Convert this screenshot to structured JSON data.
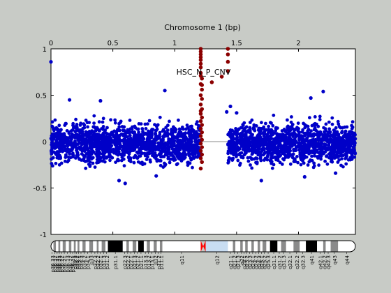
{
  "chart_data": {
    "type": "scatter",
    "title": "Chromosome 1 (bp)",
    "annotation": "HSC_N_P_CNV",
    "x_tick_labels": [
      "0",
      "0.5",
      "1",
      "1.5",
      "2"
    ],
    "x_ticks": [
      0,
      0.5,
      1,
      1.5,
      2
    ],
    "xlim": [
      0,
      2.46
    ],
    "y_tick_labels": [
      "1",
      "0.5",
      "0",
      "-0.5",
      "-1"
    ],
    "y_ticks": [
      1,
      0.5,
      0,
      -0.5,
      -1
    ],
    "ylim": [
      -1,
      1
    ],
    "grid": false,
    "baseline": 0,
    "series": [
      {
        "color": "#0000c8",
        "marker": "star",
        "segments": [
          {
            "x_start": 0.0,
            "x_end": 1.21,
            "y_center": -0.02,
            "y_spread": 0.26,
            "approx_points": 1500
          },
          {
            "x_start": 1.43,
            "x_end": 2.46,
            "y_center": -0.02,
            "y_spread": 0.26,
            "approx_points": 1300
          }
        ],
        "outliers": [
          [
            0.0,
            0.86
          ],
          [
            0.92,
            0.55
          ],
          [
            1.42,
            0.32
          ],
          [
            1.45,
            0.38
          ],
          [
            1.5,
            0.31
          ],
          [
            2.1,
            0.47
          ],
          [
            2.2,
            0.54
          ],
          [
            0.15,
            0.45
          ],
          [
            0.55,
            -0.42
          ],
          [
            0.6,
            -0.45
          ],
          [
            1.7,
            -0.42
          ],
          [
            2.05,
            -0.38
          ],
          [
            0.85,
            -0.37
          ],
          [
            2.3,
            -0.34
          ],
          [
            0.4,
            0.44
          ]
        ]
      },
      {
        "color": "#8b0000",
        "marker": "star",
        "points": [
          [
            1.21,
            1.0
          ],
          [
            1.21,
            0.97
          ],
          [
            1.21,
            0.94
          ],
          [
            1.21,
            0.91
          ],
          [
            1.21,
            0.88
          ],
          [
            1.21,
            0.84
          ],
          [
            1.21,
            0.8
          ],
          [
            1.21,
            0.74
          ],
          [
            1.22,
            0.68
          ],
          [
            1.21,
            0.62
          ],
          [
            1.22,
            0.56
          ],
          [
            1.21,
            0.5
          ],
          [
            1.22,
            0.46
          ],
          [
            1.21,
            0.4
          ],
          [
            1.22,
            0.35
          ],
          [
            1.21,
            0.3
          ],
          [
            1.22,
            0.26
          ],
          [
            1.21,
            0.22
          ],
          [
            1.22,
            0.18
          ],
          [
            1.21,
            0.14
          ],
          [
            1.22,
            0.1
          ],
          [
            1.21,
            0.06
          ],
          [
            1.22,
            0.02
          ],
          [
            1.21,
            -0.02
          ],
          [
            1.22,
            -0.06
          ],
          [
            1.21,
            -0.1
          ],
          [
            1.22,
            -0.14
          ],
          [
            1.21,
            -0.18
          ],
          [
            1.22,
            -0.22
          ],
          [
            1.21,
            -0.29
          ],
          [
            1.21,
            0.33
          ],
          [
            1.22,
            0.61
          ],
          [
            1.21,
            0.71
          ],
          [
            1.3,
            0.64
          ],
          [
            1.38,
            0.7
          ],
          [
            1.43,
            1.0
          ],
          [
            1.43,
            0.94
          ],
          [
            1.43,
            0.86
          ],
          [
            1.43,
            0.76
          ]
        ]
      }
    ],
    "ideogram": {
      "bands": [
        {
          "label": "p36.33",
          "start": 0.0,
          "end": 0.02,
          "stain": "gneg"
        },
        {
          "label": "p36.32",
          "start": 0.02,
          "end": 0.04,
          "stain": "gpos"
        },
        {
          "label": "p36.31",
          "start": 0.04,
          "end": 0.06,
          "stain": "gneg"
        },
        {
          "label": "p36.23",
          "start": 0.06,
          "end": 0.075,
          "stain": "gpos"
        },
        {
          "label": "p36.22",
          "start": 0.075,
          "end": 0.095,
          "stain": "gneg"
        },
        {
          "label": "p36.21",
          "start": 0.095,
          "end": 0.12,
          "stain": "gpos"
        },
        {
          "label": "p36.13",
          "start": 0.12,
          "end": 0.145,
          "stain": "gneg"
        },
        {
          "label": "p36.12",
          "start": 0.145,
          "end": 0.165,
          "stain": "gpos"
        },
        {
          "label": "p36.11",
          "start": 0.165,
          "end": 0.185,
          "stain": "gneg"
        },
        {
          "label": "p35.3",
          "start": 0.185,
          "end": 0.2,
          "stain": "gpos"
        },
        {
          "label": "p35.2",
          "start": 0.2,
          "end": 0.215,
          "stain": "gneg"
        },
        {
          "label": "p35.1",
          "start": 0.215,
          "end": 0.23,
          "stain": "gpos"
        },
        {
          "label": "p34.3",
          "start": 0.23,
          "end": 0.255,
          "stain": "gneg"
        },
        {
          "label": "p34.2",
          "start": 0.255,
          "end": 0.28,
          "stain": "gpos"
        },
        {
          "label": "p34.1",
          "start": 0.28,
          "end": 0.31,
          "stain": "gneg"
        },
        {
          "label": "p33",
          "start": 0.31,
          "end": 0.34,
          "stain": "gpos"
        },
        {
          "label": "p32.3",
          "start": 0.34,
          "end": 0.37,
          "stain": "gneg"
        },
        {
          "label": "p32.2",
          "start": 0.37,
          "end": 0.385,
          "stain": "gpos"
        },
        {
          "label": "p32.1",
          "start": 0.385,
          "end": 0.41,
          "stain": "gneg"
        },
        {
          "label": "p31.3",
          "start": 0.41,
          "end": 0.44,
          "stain": "gpos"
        },
        {
          "label": "p31.2",
          "start": 0.44,
          "end": 0.46,
          "stain": "gneg"
        },
        {
          "label": "p31.1",
          "start": 0.46,
          "end": 0.58,
          "stain": "gposdark"
        },
        {
          "label": "p22.3",
          "start": 0.58,
          "end": 0.61,
          "stain": "gneg"
        },
        {
          "label": "p22.2",
          "start": 0.61,
          "end": 0.63,
          "stain": "gpos"
        },
        {
          "label": "p22.1",
          "start": 0.63,
          "end": 0.66,
          "stain": "gneg"
        },
        {
          "label": "p21.3",
          "start": 0.66,
          "end": 0.69,
          "stain": "gpos"
        },
        {
          "label": "p21.2",
          "start": 0.69,
          "end": 0.705,
          "stain": "gneg"
        },
        {
          "label": "p21.1",
          "start": 0.705,
          "end": 0.75,
          "stain": "gposdark"
        },
        {
          "label": "p13.3",
          "start": 0.75,
          "end": 0.775,
          "stain": "gneg"
        },
        {
          "label": "p13.2",
          "start": 0.775,
          "end": 0.8,
          "stain": "gpos"
        },
        {
          "label": "p13.1",
          "start": 0.8,
          "end": 0.83,
          "stain": "gneg"
        },
        {
          "label": "p12",
          "start": 0.83,
          "end": 0.855,
          "stain": "gpos"
        },
        {
          "label": "p11.2",
          "start": 0.855,
          "end": 0.88,
          "stain": "gneg"
        },
        {
          "label": "p11.1",
          "start": 0.88,
          "end": 0.9,
          "stain": "gpos"
        },
        {
          "label": "q11",
          "start": 0.9,
          "end": 1.21,
          "stain": "gneg"
        },
        {
          "label": "",
          "start": 1.21,
          "end": 1.25,
          "stain": "acen"
        },
        {
          "label": "q12",
          "start": 1.25,
          "end": 1.43,
          "stain": "gvar"
        },
        {
          "label": "q21.1",
          "start": 1.43,
          "end": 1.47,
          "stain": "gneg"
        },
        {
          "label": "q21.2",
          "start": 1.47,
          "end": 1.49,
          "stain": "gpos"
        },
        {
          "label": "q21.3",
          "start": 1.49,
          "end": 1.53,
          "stain": "gneg"
        },
        {
          "label": "q22",
          "start": 1.53,
          "end": 1.55,
          "stain": "gpos"
        },
        {
          "label": "q23.1",
          "start": 1.55,
          "end": 1.57,
          "stain": "gneg"
        },
        {
          "label": "q23.2",
          "start": 1.57,
          "end": 1.59,
          "stain": "gpos"
        },
        {
          "label": "q23.3",
          "start": 1.59,
          "end": 1.62,
          "stain": "gneg"
        },
        {
          "label": "q24.1",
          "start": 1.62,
          "end": 1.64,
          "stain": "gpos"
        },
        {
          "label": "q24.2",
          "start": 1.64,
          "end": 1.67,
          "stain": "gneg"
        },
        {
          "label": "q24.3",
          "start": 1.67,
          "end": 1.69,
          "stain": "gpos"
        },
        {
          "label": "q25.1",
          "start": 1.69,
          "end": 1.71,
          "stain": "gneg"
        },
        {
          "label": "q25.2",
          "start": 1.71,
          "end": 1.74,
          "stain": "gpos"
        },
        {
          "label": "q25.3",
          "start": 1.74,
          "end": 1.77,
          "stain": "gneg"
        },
        {
          "label": "q31.1",
          "start": 1.77,
          "end": 1.83,
          "stain": "gposdark"
        },
        {
          "label": "q31.2",
          "start": 1.83,
          "end": 1.86,
          "stain": "gneg"
        },
        {
          "label": "q31.3",
          "start": 1.86,
          "end": 1.9,
          "stain": "gpos"
        },
        {
          "label": "q32.1",
          "start": 1.9,
          "end": 1.96,
          "stain": "gneg"
        },
        {
          "label": "q32.2",
          "start": 1.96,
          "end": 2.01,
          "stain": "gpos"
        },
        {
          "label": "q32.3",
          "start": 2.01,
          "end": 2.06,
          "stain": "gneg"
        },
        {
          "label": "q41",
          "start": 2.06,
          "end": 2.15,
          "stain": "gposdark"
        },
        {
          "label": "q42.1",
          "start": 2.15,
          "end": 2.2,
          "stain": "gneg"
        },
        {
          "label": "q42.2",
          "start": 2.2,
          "end": 2.22,
          "stain": "gpos"
        },
        {
          "label": "q42.3",
          "start": 2.22,
          "end": 2.26,
          "stain": "gneg"
        },
        {
          "label": "q43",
          "start": 2.26,
          "end": 2.32,
          "stain": "gpos"
        },
        {
          "label": "q44",
          "start": 2.32,
          "end": 2.46,
          "stain": "gneg"
        }
      ],
      "stain_colors": {
        "gneg": "#ffffff",
        "gpos": "#8a8a8a",
        "gposdark": "#000000",
        "gvar": "#c8ddf2",
        "acen": "#ff0000"
      }
    }
  }
}
